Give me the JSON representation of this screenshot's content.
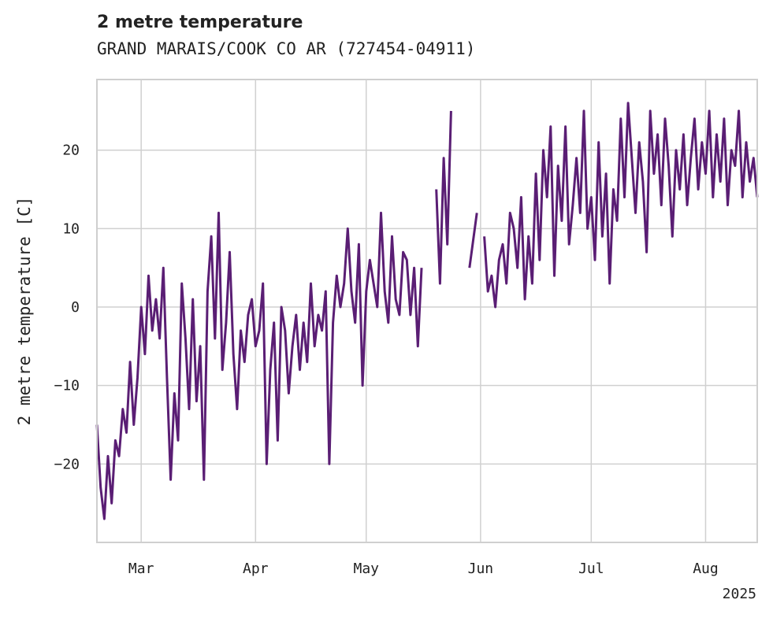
{
  "chart_data": {
    "type": "line",
    "title": "2 metre temperature",
    "subtitle": "GRAND MARAIS/COOK CO AR (727454-04911)",
    "ylabel": "2 metre temperature [C]",
    "xlabel": "",
    "x_year_label": "2025",
    "xlim": [
      "2025-02-17",
      "2025-08-15"
    ],
    "ylim": [
      -30,
      29
    ],
    "grid": true,
    "line_color": "#5a1e74",
    "x_ticks": [
      {
        "date": "2025-03-01",
        "label": "Mar"
      },
      {
        "date": "2025-04-01",
        "label": "Apr"
      },
      {
        "date": "2025-05-01",
        "label": "May"
      },
      {
        "date": "2025-06-01",
        "label": "Jun"
      },
      {
        "date": "2025-07-01",
        "label": "Jul"
      },
      {
        "date": "2025-08-01",
        "label": "Aug"
      }
    ],
    "y_ticks": [
      -20,
      -10,
      0,
      10,
      20
    ],
    "series": [
      {
        "points": [
          [
            "2025-02-17",
            -15
          ],
          [
            "2025-02-18",
            -23
          ],
          [
            "2025-02-19",
            -27
          ],
          [
            "2025-02-20",
            -19
          ],
          [
            "2025-02-21",
            -25
          ],
          [
            "2025-02-22",
            -17
          ],
          [
            "2025-02-23",
            -19
          ],
          [
            "2025-02-24",
            -13
          ],
          [
            "2025-02-25",
            -16
          ],
          [
            "2025-02-26",
            -7
          ],
          [
            "2025-02-27",
            -15
          ],
          [
            "2025-02-28",
            -9
          ],
          [
            "2025-03-01",
            0
          ],
          [
            "2025-03-02",
            -6
          ],
          [
            "2025-03-03",
            4
          ],
          [
            "2025-03-04",
            -3
          ],
          [
            "2025-03-05",
            1
          ],
          [
            "2025-03-06",
            -4
          ],
          [
            "2025-03-07",
            5
          ],
          [
            "2025-03-08",
            -9
          ],
          [
            "2025-03-09",
            -22
          ],
          [
            "2025-03-10",
            -11
          ],
          [
            "2025-03-11",
            -17
          ],
          [
            "2025-03-12",
            3
          ],
          [
            "2025-03-13",
            -4
          ],
          [
            "2025-03-14",
            -13
          ],
          [
            "2025-03-15",
            1
          ],
          [
            "2025-03-16",
            -12
          ],
          [
            "2025-03-17",
            -5
          ],
          [
            "2025-03-18",
            -22
          ],
          [
            "2025-03-19",
            2
          ],
          [
            "2025-03-20",
            9
          ],
          [
            "2025-03-21",
            -4
          ],
          [
            "2025-03-22",
            12
          ],
          [
            "2025-03-23",
            -8
          ],
          [
            "2025-03-24",
            -2
          ],
          [
            "2025-03-25",
            7
          ],
          [
            "2025-03-26",
            -6
          ],
          [
            "2025-03-27",
            -13
          ],
          [
            "2025-03-28",
            -3
          ],
          [
            "2025-03-29",
            -7
          ],
          [
            "2025-03-30",
            -1
          ],
          [
            "2025-03-31",
            1
          ],
          [
            "2025-04-01",
            -5
          ],
          [
            "2025-04-02",
            -3
          ],
          [
            "2025-04-03",
            3
          ],
          [
            "2025-04-04",
            -20
          ],
          [
            "2025-04-05",
            -8
          ],
          [
            "2025-04-06",
            -2
          ],
          [
            "2025-04-07",
            -17
          ],
          [
            "2025-04-08",
            0
          ],
          [
            "2025-04-09",
            -3
          ],
          [
            "2025-04-10",
            -11
          ],
          [
            "2025-04-11",
            -5
          ],
          [
            "2025-04-12",
            -1
          ],
          [
            "2025-04-13",
            -8
          ],
          [
            "2025-04-14",
            -2
          ],
          [
            "2025-04-15",
            -7
          ],
          [
            "2025-04-16",
            3
          ],
          [
            "2025-04-17",
            -5
          ],
          [
            "2025-04-18",
            -1
          ],
          [
            "2025-04-19",
            -3
          ],
          [
            "2025-04-20",
            2
          ],
          [
            "2025-04-21",
            -20
          ],
          [
            "2025-04-22",
            -2
          ],
          [
            "2025-04-23",
            4
          ],
          [
            "2025-04-24",
            0
          ],
          [
            "2025-04-25",
            3
          ],
          [
            "2025-04-26",
            10
          ],
          [
            "2025-04-27",
            2
          ],
          [
            "2025-04-28",
            -2
          ],
          [
            "2025-04-29",
            8
          ],
          [
            "2025-04-30",
            -10
          ],
          [
            "2025-05-01",
            2
          ],
          [
            "2025-05-02",
            6
          ],
          [
            "2025-05-03",
            3
          ],
          [
            "2025-05-04",
            0
          ],
          [
            "2025-05-05",
            12
          ],
          [
            "2025-05-06",
            2
          ],
          [
            "2025-05-07",
            -2
          ],
          [
            "2025-05-08",
            9
          ],
          [
            "2025-05-09",
            1
          ],
          [
            "2025-05-10",
            -1
          ],
          [
            "2025-05-11",
            7
          ],
          [
            "2025-05-12",
            6
          ],
          [
            "2025-05-13",
            -1
          ],
          [
            "2025-05-14",
            5
          ],
          [
            "2025-05-15",
            -5
          ],
          [
            "2025-05-16",
            5
          ],
          null,
          [
            "2025-05-20",
            15
          ],
          [
            "2025-05-21",
            3
          ],
          [
            "2025-05-22",
            19
          ],
          [
            "2025-05-23",
            8
          ],
          [
            "2025-05-24",
            25
          ],
          null,
          [
            "2025-05-29",
            5
          ],
          [
            "2025-05-31",
            12
          ],
          null,
          [
            "2025-06-02",
            9
          ],
          [
            "2025-06-03",
            2
          ],
          [
            "2025-06-04",
            4
          ],
          [
            "2025-06-05",
            0
          ],
          [
            "2025-06-06",
            6
          ],
          [
            "2025-06-07",
            8
          ],
          [
            "2025-06-08",
            3
          ],
          [
            "2025-06-09",
            12
          ],
          [
            "2025-06-10",
            10
          ],
          [
            "2025-06-11",
            5
          ],
          [
            "2025-06-12",
            14
          ],
          [
            "2025-06-13",
            1
          ],
          [
            "2025-06-14",
            9
          ],
          [
            "2025-06-15",
            3
          ],
          [
            "2025-06-16",
            17
          ],
          [
            "2025-06-17",
            6
          ],
          [
            "2025-06-18",
            20
          ],
          [
            "2025-06-19",
            14
          ],
          [
            "2025-06-20",
            23
          ],
          [
            "2025-06-21",
            4
          ],
          [
            "2025-06-22",
            18
          ],
          [
            "2025-06-23",
            11
          ],
          [
            "2025-06-24",
            23
          ],
          [
            "2025-06-25",
            8
          ],
          [
            "2025-06-26",
            13
          ],
          [
            "2025-06-27",
            19
          ],
          [
            "2025-06-28",
            12
          ],
          [
            "2025-06-29",
            25
          ],
          [
            "2025-06-30",
            10
          ],
          [
            "2025-07-01",
            14
          ],
          [
            "2025-07-02",
            6
          ],
          [
            "2025-07-03",
            21
          ],
          [
            "2025-07-04",
            9
          ],
          [
            "2025-07-05",
            17
          ],
          [
            "2025-07-06",
            3
          ],
          [
            "2025-07-07",
            15
          ],
          [
            "2025-07-08",
            11
          ],
          [
            "2025-07-09",
            24
          ],
          [
            "2025-07-10",
            14
          ],
          [
            "2025-07-11",
            26
          ],
          [
            "2025-07-12",
            19
          ],
          [
            "2025-07-13",
            12
          ],
          [
            "2025-07-14",
            21
          ],
          [
            "2025-07-15",
            16
          ],
          [
            "2025-07-16",
            7
          ],
          [
            "2025-07-17",
            25
          ],
          [
            "2025-07-18",
            17
          ],
          [
            "2025-07-19",
            22
          ],
          [
            "2025-07-20",
            13
          ],
          [
            "2025-07-21",
            24
          ],
          [
            "2025-07-22",
            18
          ],
          [
            "2025-07-23",
            9
          ],
          [
            "2025-07-24",
            20
          ],
          [
            "2025-07-25",
            15
          ],
          [
            "2025-07-26",
            22
          ],
          [
            "2025-07-27",
            13
          ],
          [
            "2025-07-28",
            19
          ],
          [
            "2025-07-29",
            24
          ],
          [
            "2025-07-30",
            15
          ],
          [
            "2025-07-31",
            21
          ],
          [
            "2025-08-01",
            17
          ],
          [
            "2025-08-02",
            25
          ],
          [
            "2025-08-03",
            14
          ],
          [
            "2025-08-04",
            22
          ],
          [
            "2025-08-05",
            16
          ],
          [
            "2025-08-06",
            24
          ],
          [
            "2025-08-07",
            13
          ],
          [
            "2025-08-08",
            20
          ],
          [
            "2025-08-09",
            18
          ],
          [
            "2025-08-10",
            25
          ],
          [
            "2025-08-11",
            14
          ],
          [
            "2025-08-12",
            21
          ],
          [
            "2025-08-13",
            16
          ],
          [
            "2025-08-14",
            19
          ],
          [
            "2025-08-15",
            14
          ]
        ]
      }
    ]
  }
}
